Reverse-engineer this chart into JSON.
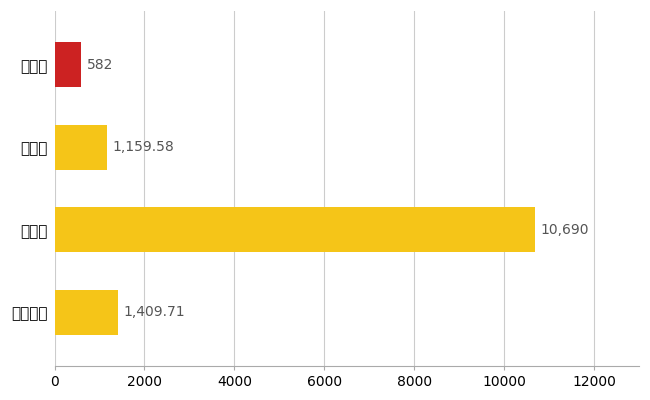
{
  "categories": [
    "川南町",
    "県平均",
    "県最大",
    "全国平均"
  ],
  "values": [
    582,
    1159.58,
    10690,
    1409.71
  ],
  "bar_colors": [
    "#cc2222",
    "#f5c518",
    "#f5c518",
    "#f5c518"
  ],
  "labels": [
    "582",
    "1,159.58",
    "10,690",
    "1,409.71"
  ],
  "xlim": [
    0,
    13000
  ],
  "xticks": [
    0,
    2000,
    4000,
    6000,
    8000,
    10000,
    12000
  ],
  "bar_height": 0.55,
  "grid_color": "#cccccc",
  "background_color": "#ffffff",
  "label_fontsize": 10,
  "tick_fontsize": 10,
  "ylabel_fontsize": 11
}
